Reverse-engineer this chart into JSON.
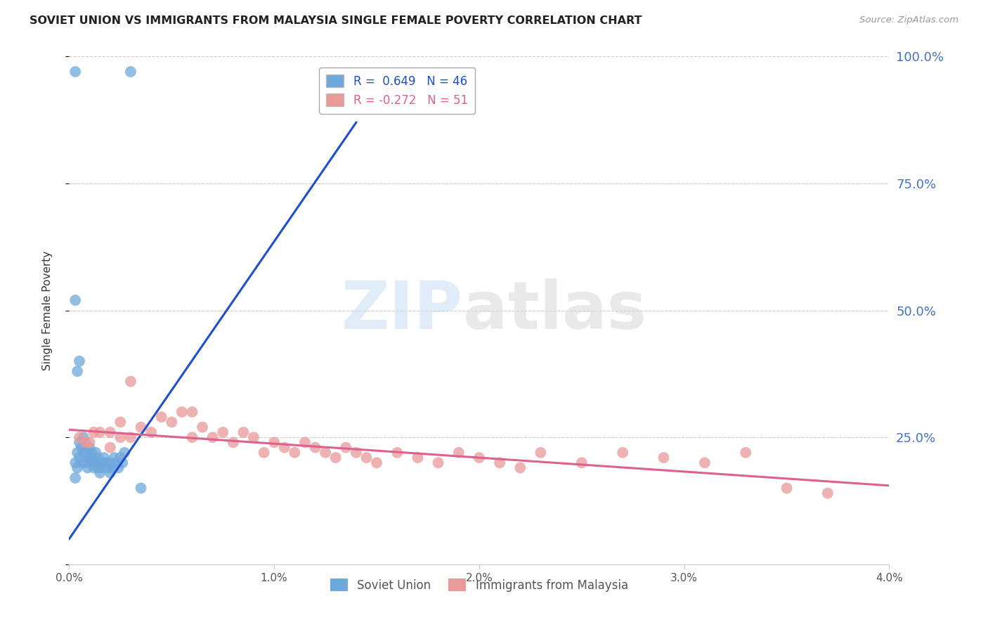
{
  "title": "SOVIET UNION VS IMMIGRANTS FROM MALAYSIA SINGLE FEMALE POVERTY CORRELATION CHART",
  "source": "Source: ZipAtlas.com",
  "ylabel": "Single Female Poverty",
  "xmin": 0.0,
  "xmax": 0.04,
  "ymin": 0.0,
  "ymax": 1.0,
  "yticks": [
    0.0,
    0.25,
    0.5,
    0.75,
    1.0
  ],
  "ytick_labels": [
    "",
    "25.0%",
    "50.0%",
    "75.0%",
    "100.0%"
  ],
  "xticks": [
    0.0,
    0.01,
    0.02,
    0.03,
    0.04
  ],
  "xtick_labels": [
    "0.0%",
    "1.0%",
    "2.0%",
    "3.0%",
    "4.0%"
  ],
  "blue_color": "#6fa8dc",
  "pink_color": "#ea9999",
  "blue_line_color": "#1e4fcc",
  "pink_line_color": "#e06090",
  "r_blue": 0.649,
  "n_blue": 46,
  "r_pink": -0.272,
  "n_pink": 51,
  "soviet_union_x": [
    0.0003,
    0.0003,
    0.0004,
    0.0004,
    0.0005,
    0.0005,
    0.0006,
    0.0006,
    0.0007,
    0.0007,
    0.0008,
    0.0008,
    0.0009,
    0.0009,
    0.001,
    0.001,
    0.0011,
    0.0011,
    0.0012,
    0.0012,
    0.0013,
    0.0013,
    0.0014,
    0.0014,
    0.0015,
    0.0015,
    0.0016,
    0.0016,
    0.0017,
    0.0018,
    0.0019,
    0.002,
    0.002,
    0.0021,
    0.0022,
    0.0023,
    0.0024,
    0.0025,
    0.0026,
    0.0027,
    0.0004,
    0.0005,
    0.0003,
    0.0003,
    0.003,
    0.0035
  ],
  "soviet_union_y": [
    0.17,
    0.2,
    0.19,
    0.22,
    0.21,
    0.24,
    0.2,
    0.23,
    0.22,
    0.25,
    0.2,
    0.22,
    0.21,
    0.19,
    0.23,
    0.21,
    0.2,
    0.22,
    0.21,
    0.19,
    0.2,
    0.22,
    0.21,
    0.19,
    0.2,
    0.18,
    0.2,
    0.19,
    0.21,
    0.2,
    0.19,
    0.18,
    0.2,
    0.19,
    0.21,
    0.2,
    0.19,
    0.21,
    0.2,
    0.22,
    0.38,
    0.4,
    0.52,
    0.97,
    0.97,
    0.15
  ],
  "malaysia_x": [
    0.001,
    0.0015,
    0.002,
    0.0025,
    0.003,
    0.0035,
    0.004,
    0.0045,
    0.005,
    0.0055,
    0.006,
    0.006,
    0.0065,
    0.007,
    0.0075,
    0.008,
    0.0085,
    0.009,
    0.0095,
    0.01,
    0.0105,
    0.011,
    0.0115,
    0.012,
    0.0125,
    0.013,
    0.0135,
    0.014,
    0.0145,
    0.015,
    0.016,
    0.017,
    0.018,
    0.019,
    0.02,
    0.021,
    0.022,
    0.023,
    0.025,
    0.027,
    0.029,
    0.031,
    0.033,
    0.035,
    0.037,
    0.0005,
    0.0008,
    0.0012,
    0.002,
    0.0025,
    0.003
  ],
  "malaysia_y": [
    0.24,
    0.26,
    0.26,
    0.28,
    0.25,
    0.27,
    0.26,
    0.29,
    0.28,
    0.3,
    0.25,
    0.3,
    0.27,
    0.25,
    0.26,
    0.24,
    0.26,
    0.25,
    0.22,
    0.24,
    0.23,
    0.22,
    0.24,
    0.23,
    0.22,
    0.21,
    0.23,
    0.22,
    0.21,
    0.2,
    0.22,
    0.21,
    0.2,
    0.22,
    0.21,
    0.2,
    0.19,
    0.22,
    0.2,
    0.22,
    0.21,
    0.2,
    0.22,
    0.15,
    0.14,
    0.25,
    0.24,
    0.26,
    0.23,
    0.25,
    0.36
  ],
  "blue_line_x": [
    0.0,
    0.014
  ],
  "blue_line_y": [
    0.05,
    0.87
  ],
  "pink_line_x": [
    0.0,
    0.04
  ],
  "pink_line_y": [
    0.265,
    0.155
  ]
}
